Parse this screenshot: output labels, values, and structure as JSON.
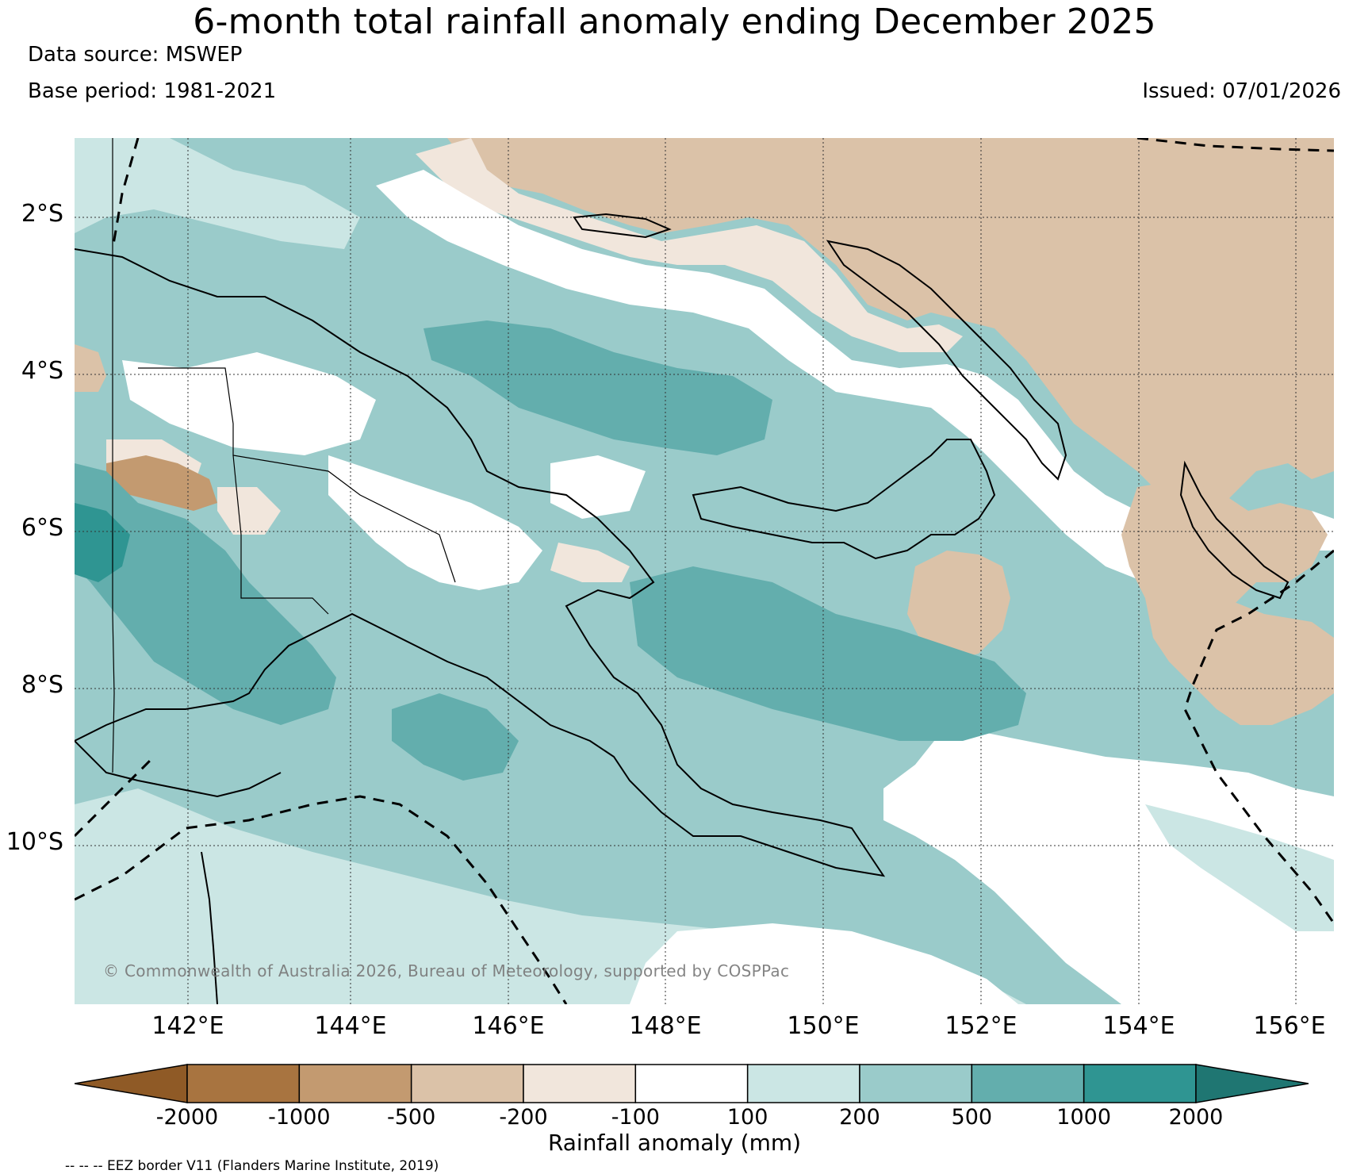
{
  "header": {
    "title": "6-month total rainfall anomaly ending December 2025",
    "data_source": "Data source: MSWEP",
    "base_period": "Base period: 1981-2021",
    "issued": "Issued: 07/01/2026"
  },
  "map": {
    "lat_labels": [
      "2°S",
      "4°S",
      "6°S",
      "8°S",
      "10°S"
    ],
    "lon_labels": [
      "142°E",
      "144°E",
      "146°E",
      "148°E",
      "150°E",
      "152°E",
      "154°E",
      "156°E"
    ],
    "copyright": "© Commonwealth of Australia 2026, Bureau of Meteorology, supported by COSPPac",
    "eez_note": "-- -- -- EEZ border V11 (Flanders Marine Institute, 2019)"
  },
  "legend": {
    "title": "Rainfall anomaly (mm)",
    "ticks": [
      "-2000",
      "-1000",
      "-500",
      "-200",
      "-100",
      "100",
      "200",
      "500",
      "1000",
      "2000"
    ],
    "colors": [
      "#8f5a26",
      "#a87440",
      "#c39a70",
      "#dbc2a8",
      "#f1e6dc",
      "#ffffff",
      "#cbe6e4",
      "#9acbca",
      "#63aead",
      "#2f9592",
      "#1f7672"
    ]
  }
}
